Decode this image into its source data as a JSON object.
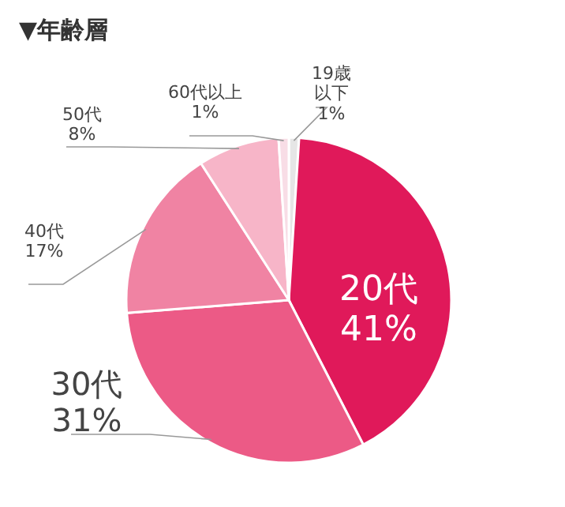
{
  "chart_data": {
    "type": "pie",
    "title": "▼年齢層",
    "categories": [
      "19歳以下",
      "20代",
      "30代",
      "40代",
      "50代",
      "60代以上"
    ],
    "values": [
      1,
      41,
      31,
      17,
      8,
      1
    ],
    "value_labels": [
      "1%",
      "41%",
      "31%",
      "17%",
      "8%",
      "1%"
    ],
    "colors": [
      "#e6e6e6",
      "#e0195a",
      "#ec5a86",
      "#f083a3",
      "#f7b5c8",
      "#f8dde6"
    ]
  }
}
